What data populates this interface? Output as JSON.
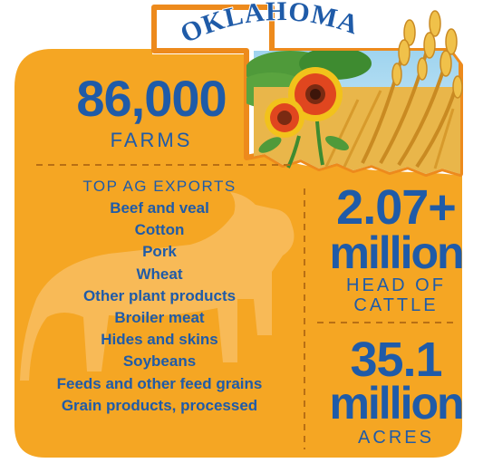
{
  "state_title": "OKLAHOMA",
  "farms": {
    "value": "86,000",
    "label": "FARMS"
  },
  "exports": {
    "heading": "TOP AG EXPORTS",
    "items": [
      "Beef and veal",
      "Cotton",
      "Pork",
      "Wheat",
      "Other plant products",
      "Broiler meat",
      "Hides and skins",
      "Soybeans",
      "Feeds and other feed grains",
      "Grain products, processed"
    ]
  },
  "cattle": {
    "value": "2.07+",
    "unit": "million",
    "label_line1": "HEAD OF",
    "label_line2": "CATTLE"
  },
  "acres": {
    "value": "35.1",
    "unit": "million",
    "label": "ACRES"
  },
  "colors": {
    "background": "#f5a623",
    "number_blue": "#1f5ba8",
    "state_fill": "#ffffff",
    "state_outline": "#ed8a1c",
    "divider": "#b86f14"
  },
  "illustration": [
    "oklahoma-state-outline",
    "blanket-flower-icon",
    "wheat-stalks-icon",
    "cow-silhouette"
  ]
}
